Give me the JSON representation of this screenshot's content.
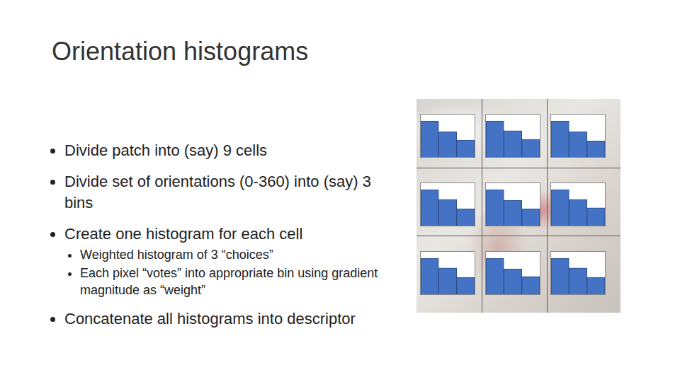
{
  "slide": {
    "title": "Orientation histograms",
    "bullets": [
      {
        "text": "Divide patch into (say) 9 cells"
      },
      {
        "text": "Divide set of orientations (0-360) into (say) 3 bins"
      },
      {
        "text": "Create one histogram for each cell",
        "sub": [
          "Weighted histogram of 3 “choices”",
          "Each pixel “votes” into appropriate bin using gradient magnitude as “weight”"
        ]
      },
      {
        "text": "Concatenate all histograms into descriptor"
      }
    ]
  },
  "chart_data": [
    {
      "type": "bar",
      "categories": [
        null,
        null,
        null
      ],
      "values": [
        0.85,
        0.6,
        0.4
      ],
      "color": "#4472c4",
      "ylim": [
        0,
        1
      ],
      "tick_labels": false
    },
    {
      "type": "bar",
      "categories": [
        null,
        null,
        null
      ],
      "values": [
        0.85,
        0.62,
        0.42
      ],
      "color": "#4472c4",
      "ylim": [
        0,
        1
      ],
      "tick_labels": false
    },
    {
      "type": "bar",
      "categories": [
        null,
        null,
        null
      ],
      "values": [
        0.85,
        0.6,
        0.38
      ],
      "color": "#4472c4",
      "ylim": [
        0,
        1
      ],
      "tick_labels": false
    },
    {
      "type": "bar",
      "categories": [
        null,
        null,
        null
      ],
      "values": [
        0.85,
        0.62,
        0.4
      ],
      "color": "#4472c4",
      "ylim": [
        0,
        1
      ],
      "tick_labels": false
    },
    {
      "type": "bar",
      "categories": [
        null,
        null,
        null
      ],
      "values": [
        0.85,
        0.6,
        0.4
      ],
      "color": "#4472c4",
      "ylim": [
        0,
        1
      ],
      "tick_labels": false
    },
    {
      "type": "bar",
      "categories": [
        null,
        null,
        null
      ],
      "values": [
        0.85,
        0.62,
        0.42
      ],
      "color": "#4472c4",
      "ylim": [
        0,
        1
      ],
      "tick_labels": false
    },
    {
      "type": "bar",
      "categories": [
        null,
        null,
        null
      ],
      "values": [
        0.85,
        0.62,
        0.4
      ],
      "color": "#4472c4",
      "ylim": [
        0,
        1
      ],
      "tick_labels": false
    },
    {
      "type": "bar",
      "categories": [
        null,
        null,
        null
      ],
      "values": [
        0.85,
        0.6,
        0.42
      ],
      "color": "#4472c4",
      "ylim": [
        0,
        1
      ],
      "tick_labels": false
    },
    {
      "type": "bar",
      "categories": [
        null,
        null,
        null
      ],
      "values": [
        0.85,
        0.62,
        0.4
      ],
      "color": "#4472c4",
      "ylim": [
        0,
        1
      ],
      "tick_labels": false
    }
  ]
}
